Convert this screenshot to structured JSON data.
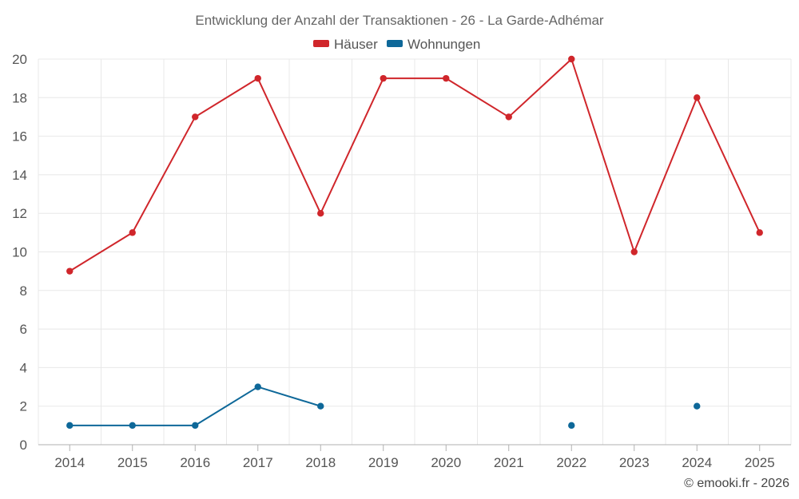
{
  "chart_data": {
    "type": "line",
    "title": "Entwicklung der Anzahl der Transaktionen - 26 - La Garde-Adhémar",
    "categories": [
      "2014",
      "2015",
      "2016",
      "2017",
      "2018",
      "2019",
      "2020",
      "2021",
      "2022",
      "2023",
      "2024",
      "2025"
    ],
    "series": [
      {
        "name": "Häuser",
        "color": "#d0262b",
        "values": [
          9,
          11,
          17,
          19,
          12,
          19,
          19,
          17,
          20,
          10,
          18,
          11
        ]
      },
      {
        "name": "Wohnungen",
        "color": "#0e6899",
        "values": [
          1,
          1,
          1,
          3,
          2,
          null,
          null,
          null,
          1,
          null,
          2,
          null
        ]
      }
    ],
    "ylim": [
      0,
      20
    ],
    "yticks": [
      0,
      2,
      4,
      6,
      8,
      10,
      12,
      14,
      16,
      18,
      20
    ],
    "grid": true,
    "legend_position": "top-center"
  },
  "credit": "© emooki.fr - 2026"
}
